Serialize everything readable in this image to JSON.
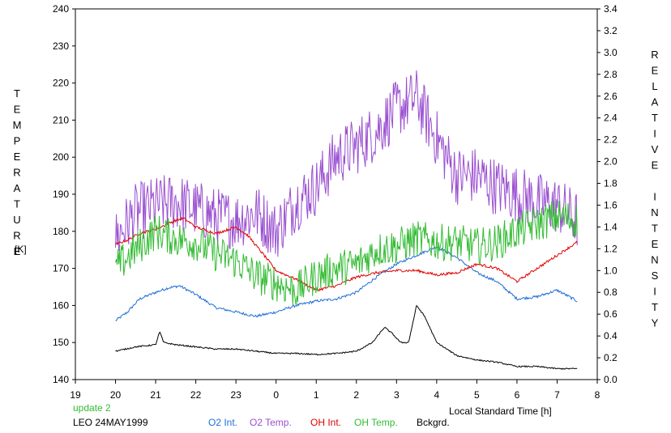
{
  "chart_data": {
    "type": "line",
    "left_axis": {
      "label": "TEMPERATURE",
      "unit": "[K]",
      "range": [
        140,
        240
      ],
      "ticks": [
        "140",
        "150",
        "160",
        "170",
        "180",
        "190",
        "200",
        "210",
        "220",
        "230",
        "240"
      ]
    },
    "right_axis": {
      "label": "RELATIVE INTENSITY",
      "range": [
        0.0,
        3.4
      ],
      "ticks": [
        "0.0",
        "0.2",
        "0.4",
        "0.6",
        "0.8",
        "1.0",
        "1.2",
        "1.4",
        "1.6",
        "1.8",
        "2.0",
        "2.2",
        "2.4",
        "2.6",
        "2.8",
        "3.0",
        "3.2",
        "3.4"
      ]
    },
    "x_axis": {
      "label": "Local Standard Time [h]",
      "range": [
        19,
        32
      ],
      "ticks": [
        "19",
        "20",
        "21",
        "22",
        "23",
        "0",
        "1",
        "2",
        "3",
        "4",
        "5",
        "6",
        "7",
        "8"
      ]
    },
    "grid": false,
    "annotation_update": "update 2",
    "annotation_station": "LEO 24MAY1999",
    "legend": [
      {
        "name": "O2 Int.",
        "color": "#1f6fd6"
      },
      {
        "name": "O2 Temp.",
        "color": "#9a4fd0"
      },
      {
        "name": "OH Int.",
        "color": "#e00000"
      },
      {
        "name": "OH Temp.",
        "color": "#33bb33"
      },
      {
        "name": "Bckgrd.",
        "color": "#000000"
      }
    ],
    "series": [
      {
        "name": "O2 Int.",
        "axis": "right",
        "color": "#1f6fd6",
        "noise": 0.012,
        "x": [
          20.0,
          20.3,
          20.6,
          21.0,
          21.3,
          21.6,
          22.0,
          22.5,
          23.0,
          23.5,
          24.0,
          24.5,
          25.0,
          25.5,
          26.0,
          26.5,
          27.0,
          27.5,
          28.0,
          28.5,
          29.0,
          29.5,
          30.0,
          30.5,
          31.0,
          31.5
        ],
        "y": [
          0.54,
          0.62,
          0.74,
          0.8,
          0.84,
          0.86,
          0.78,
          0.66,
          0.62,
          0.58,
          0.62,
          0.68,
          0.72,
          0.74,
          0.8,
          0.94,
          1.06,
          1.14,
          1.22,
          1.12,
          0.98,
          0.9,
          0.74,
          0.76,
          0.82,
          0.72
        ]
      },
      {
        "name": "O2 Temp.",
        "axis": "left",
        "color": "#9a4fd0",
        "noise": 8,
        "x": [
          20.0,
          20.5,
          21.0,
          21.5,
          22.0,
          22.5,
          23.0,
          23.5,
          24.0,
          24.5,
          25.0,
          25.5,
          26.0,
          26.5,
          27.0,
          27.5,
          28.0,
          28.5,
          29.0,
          29.5,
          30.0,
          30.5,
          31.0,
          31.5
        ],
        "y": [
          178,
          185,
          187,
          188,
          186,
          184,
          183,
          185,
          180,
          188,
          192,
          200,
          203,
          207,
          213,
          216,
          205,
          195,
          195,
          192,
          190,
          188,
          187,
          183
        ]
      },
      {
        "name": "OH Int.",
        "axis": "right",
        "color": "#e00000",
        "noise": 0.012,
        "x": [
          20.0,
          20.3,
          20.6,
          21.0,
          21.5,
          21.7,
          22.0,
          22.5,
          23.0,
          23.3,
          23.7,
          24.0,
          24.5,
          25.0,
          25.5,
          26.0,
          26.5,
          27.0,
          27.5,
          28.0,
          28.5,
          29.0,
          29.5,
          30.0,
          30.5,
          31.0,
          31.5
        ],
        "y": [
          1.24,
          1.28,
          1.34,
          1.38,
          1.46,
          1.48,
          1.4,
          1.34,
          1.4,
          1.32,
          1.14,
          1.0,
          0.92,
          0.82,
          0.86,
          0.94,
          0.98,
          1.0,
          1.0,
          0.96,
          0.98,
          1.06,
          1.02,
          0.9,
          1.02,
          1.14,
          1.26
        ]
      },
      {
        "name": "OH Temp.",
        "axis": "left",
        "color": "#33bb33",
        "noise": 5,
        "x": [
          20.0,
          20.5,
          21.0,
          21.5,
          22.0,
          22.5,
          23.0,
          23.5,
          24.0,
          24.5,
          25.0,
          25.5,
          26.0,
          26.5,
          27.0,
          27.5,
          28.0,
          28.5,
          29.0,
          29.5,
          30.0,
          30.5,
          31.0,
          31.5
        ],
        "y": [
          170,
          175,
          180,
          178,
          177,
          174,
          172,
          168,
          166,
          164,
          168,
          170,
          171,
          175,
          176,
          178,
          177,
          177,
          176,
          177,
          180,
          182,
          184,
          183
        ]
      },
      {
        "name": "Bckgrd.",
        "axis": "right",
        "color": "#000000",
        "noise": 0.006,
        "x": [
          20.0,
          20.5,
          21.0,
          21.1,
          21.2,
          21.5,
          22.0,
          22.5,
          23.0,
          23.5,
          24.0,
          24.5,
          25.0,
          25.5,
          26.0,
          26.4,
          26.7,
          26.9,
          27.1,
          27.3,
          27.5,
          27.7,
          28.0,
          28.5,
          29.0,
          29.5,
          30.0,
          30.5,
          31.0,
          31.5
        ],
        "y": [
          0.26,
          0.3,
          0.32,
          0.44,
          0.34,
          0.32,
          0.3,
          0.28,
          0.28,
          0.26,
          0.24,
          0.24,
          0.23,
          0.24,
          0.26,
          0.34,
          0.48,
          0.42,
          0.34,
          0.34,
          0.68,
          0.58,
          0.34,
          0.22,
          0.18,
          0.16,
          0.12,
          0.12,
          0.1,
          0.1
        ]
      }
    ]
  }
}
